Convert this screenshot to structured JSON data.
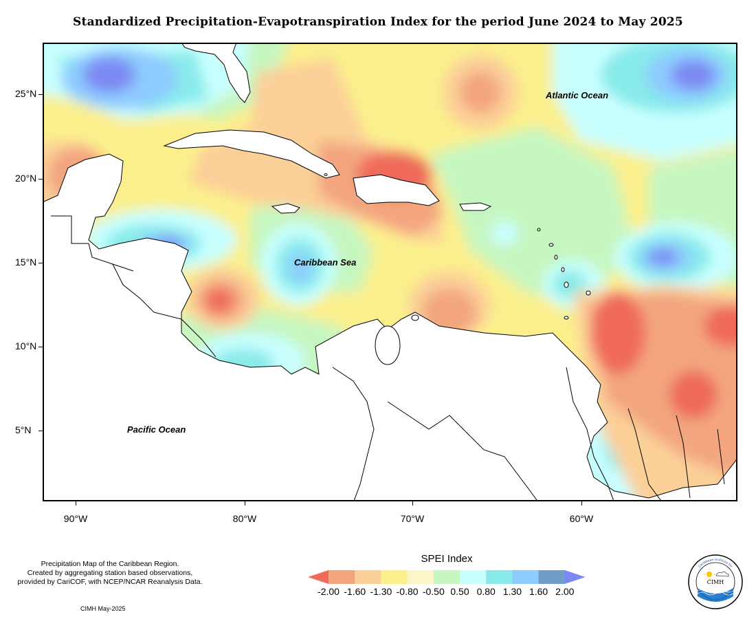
{
  "title": "Standardized Precipitation-Evapotranspiration Index for the period June 2024 to May 2025",
  "axes": {
    "lat_labels": [
      "25°N",
      "20°N",
      "15°N",
      "10°N",
      "5°N"
    ],
    "lon_labels": [
      "90°W",
      "80°W",
      "70°W",
      "60°W"
    ]
  },
  "places": {
    "atlantic": "Atlantic Ocean",
    "caribbean": "Caribbean Sea",
    "pacific": "Pacific Ocean"
  },
  "legend": {
    "title": "SPEI Index",
    "labels": [
      "-2.00",
      "-1.60",
      "-1.30",
      "-0.80",
      "-0.50",
      "0.50",
      "0.80",
      "1.30",
      "1.60",
      "2.00"
    ],
    "colors": [
      "#ef6a5a",
      "#f3a57f",
      "#fbcf98",
      "#fbef8c",
      "#fbf5c9",
      "#c6f6c0",
      "#c8ffff",
      "#88eaea",
      "#8ecbff",
      "#6f9fc8",
      "#7b8af2"
    ]
  },
  "credit": {
    "line1": "Precipitation Map of the Caribbean Region.",
    "line2": "Created by aggregating station based observations,",
    "line3": "provided by CariCOF, with NCEP/NCAR Reanalysis Data.",
    "line4": "CIMH May-2025"
  },
  "logo": {
    "text": "CIMH",
    "arc_top": "Caribbean Institute for",
    "arc_bottom": "Meteorology and Hydrology"
  }
}
